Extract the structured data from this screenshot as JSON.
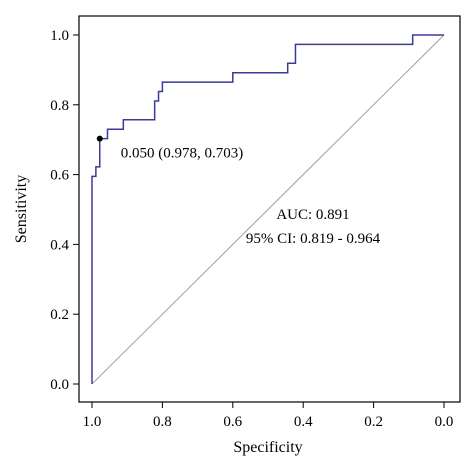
{
  "chart_data": {
    "type": "line",
    "xlabel": "Specificity",
    "ylabel": "Sensitivity",
    "xlim": [
      1.0,
      0.0
    ],
    "ylim": [
      0.0,
      1.0
    ],
    "x_reversed": true,
    "x_ticks": [
      "1.0",
      "0.8",
      "0.6",
      "0.4",
      "0.2",
      "0.0"
    ],
    "x_tick_values": [
      1.0,
      0.8,
      0.6,
      0.4,
      0.2,
      0.0
    ],
    "y_ticks": [
      "0.0",
      "0.2",
      "0.4",
      "0.6",
      "0.8",
      "1.0"
    ],
    "y_tick_values": [
      0.0,
      0.2,
      0.4,
      0.6,
      0.8,
      1.0
    ],
    "grid": false,
    "series": [
      {
        "color": "#3b3b98",
        "specificity": [
          1.0,
          1.0,
          0.989,
          0.989,
          0.978,
          0.978,
          0.978,
          0.978,
          0.956,
          0.956,
          0.911,
          0.911,
          0.822,
          0.822,
          0.811,
          0.811,
          0.8,
          0.8,
          0.6,
          0.6,
          0.444,
          0.444,
          0.422,
          0.422,
          0.089,
          0.089,
          0.0
        ],
        "sensitivity": [
          0.0,
          0.595,
          0.595,
          0.622,
          0.622,
          0.676,
          0.703,
          0.703,
          0.703,
          0.73,
          0.73,
          0.757,
          0.757,
          0.811,
          0.811,
          0.838,
          0.838,
          0.865,
          0.865,
          0.892,
          0.892,
          0.919,
          0.919,
          0.973,
          0.973,
          1.0,
          1.0
        ]
      }
    ],
    "reference_line": {
      "from": [
        1.0,
        0.0
      ],
      "to": [
        0.0,
        1.0
      ],
      "color": "#a0a0a0"
    },
    "threshold_point": {
      "specificity": 0.978,
      "sensitivity": 0.703,
      "label": "0.050 (0.978, 0.703)"
    },
    "annotations": [
      "AUC: 0.891",
      "95% CI: 0.819 - 0.964"
    ]
  }
}
